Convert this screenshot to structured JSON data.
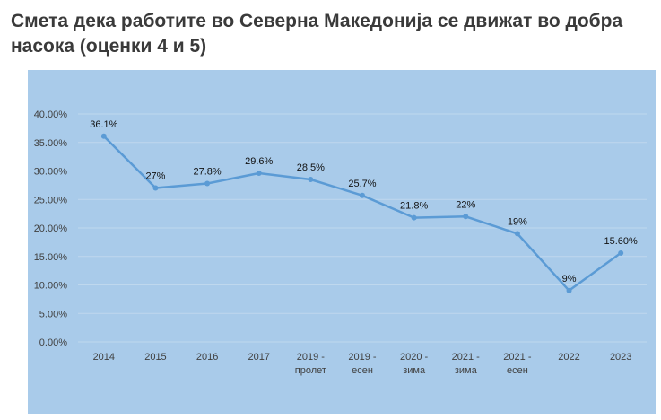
{
  "title": "Смета дека работите во Северна Македонија се движат во добра насока (оценки 4 и 5)",
  "colors": {
    "background": "#A9CBEA",
    "line": "#5B9BD5",
    "grid": "#BFD8EE",
    "text": "#404040"
  },
  "chart_data": {
    "type": "line",
    "categories": [
      [
        "2014"
      ],
      [
        "2015"
      ],
      [
        "2016"
      ],
      [
        "2017"
      ],
      [
        "2019 -",
        "пролет"
      ],
      [
        "2019 -",
        "есен"
      ],
      [
        "2020 -",
        "зима"
      ],
      [
        "2021 -",
        "зима"
      ],
      [
        "2021 -",
        "есен"
      ],
      [
        "2022"
      ],
      [
        "2023"
      ]
    ],
    "series": [
      {
        "values": [
          36.1,
          27,
          27.8,
          29.6,
          28.5,
          25.7,
          21.8,
          22,
          19,
          9,
          15.6
        ],
        "labels": [
          "36.1%",
          "27%",
          "27.8%",
          "29.6%",
          "28.5%",
          "25.7%",
          "21.8%",
          "22%",
          "19%",
          "9%",
          "15.60%"
        ]
      }
    ],
    "ylim": [
      0,
      40
    ],
    "yticks": [
      0,
      5,
      10,
      15,
      20,
      25,
      30,
      35,
      40
    ],
    "ytick_labels": [
      "0.00%",
      "5.00%",
      "10.00%",
      "15.00%",
      "20.00%",
      "25.00%",
      "30.00%",
      "35.00%",
      "40.00%"
    ],
    "grid": true,
    "legend": "none"
  }
}
